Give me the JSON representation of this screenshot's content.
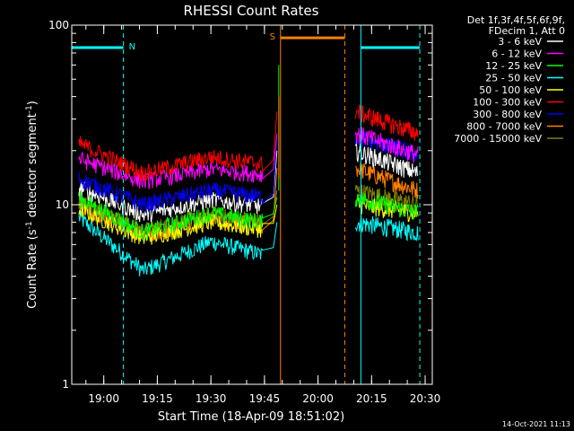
{
  "chart_data": {
    "type": "line",
    "title": "RHESSI Count Rates",
    "xlabel": "Start Time (18-Apr-09 18:51:02)",
    "ylabel": "Count Rate (s",
    "ylabel_sup": "-1",
    "ylabel_tail": " detector segment",
    "ylabel_sup2": "-1",
    "ylabel_end": ")",
    "yscale": "log",
    "ylim": [
      1,
      100
    ],
    "xlim": [
      "18:51:02",
      "20:32:00"
    ],
    "x_ticks": [
      "19:00",
      "19:15",
      "19:30",
      "19:45",
      "20:00",
      "20:15",
      "20:30"
    ],
    "y_ticks": [
      "1",
      "10",
      "100"
    ],
    "legend_title": [
      "Det 1f,3f,4f,5f,6f,9f,",
      "FDecim 1, Att 0"
    ],
    "legend_position": "outside-right",
    "series": [
      {
        "name": "3 - 6 keV",
        "color": "#ffffff",
        "level_start": 12.5,
        "level_min": 8.8,
        "level_end": 10.5,
        "level_after": 20,
        "level_after_end": 15
      },
      {
        "name": "6 - 12 keV",
        "color": "#ff00ff",
        "level_start": 18,
        "level_min": 13.5,
        "level_end": 15,
        "level_after": 25,
        "level_after_end": 19
      },
      {
        "name": "12 - 25 keV",
        "color": "#00ff00",
        "level_start": 11,
        "level_min": 7,
        "level_end": 8.5,
        "level_after": 11,
        "level_after_end": 9
      },
      {
        "name": "25 - 50 keV",
        "color": "#00ffff",
        "level_start": 8.5,
        "level_min": 4.3,
        "level_end": 5.5,
        "level_after": 8,
        "level_after_end": 7
      },
      {
        "name": "50 - 100 keV",
        "color": "#ffff00",
        "level_start": 9.5,
        "level_min": 6.5,
        "level_end": 7.5,
        "level_after": 10,
        "level_after_end": 9
      },
      {
        "name": "100 - 300 keV",
        "color": "#ff0000",
        "level_start": 22,
        "level_min": 15,
        "level_end": 17,
        "level_after": 33,
        "level_after_end": 25
      },
      {
        "name": "300 - 800 keV",
        "color": "#0000ff",
        "level_start": 14,
        "level_min": 10,
        "level_end": 11,
        "level_after": 24,
        "level_after_end": 19
      },
      {
        "name": "800 - 7000 keV",
        "color": "#ff8000",
        "level_start": 10,
        "level_min": 6.8,
        "level_end": 7.8,
        "level_after": 16,
        "level_after_end": 12
      },
      {
        "name": "7000 - 15000 keV",
        "color": "#808000",
        "level_start": 10.5,
        "level_min": 7.2,
        "level_end": 8.2,
        "level_after": 12,
        "level_after_end": 10
      }
    ],
    "gap_start": "19:49:30",
    "gap_end": "20:10:30",
    "annotations": [
      {
        "label": "N",
        "color": "#00ffff",
        "start": "18:51:02",
        "end": "19:05:30",
        "level": 75
      },
      {
        "label": "S",
        "color": "#ff8000",
        "start": "19:49:30",
        "end": "20:07:30",
        "level": 85
      },
      {
        "label": "",
        "color": "#00ffff",
        "start": "20:12:00",
        "end": "20:28:30",
        "level": 75
      }
    ],
    "timestamp": "14-Oct-2021 11:13"
  }
}
